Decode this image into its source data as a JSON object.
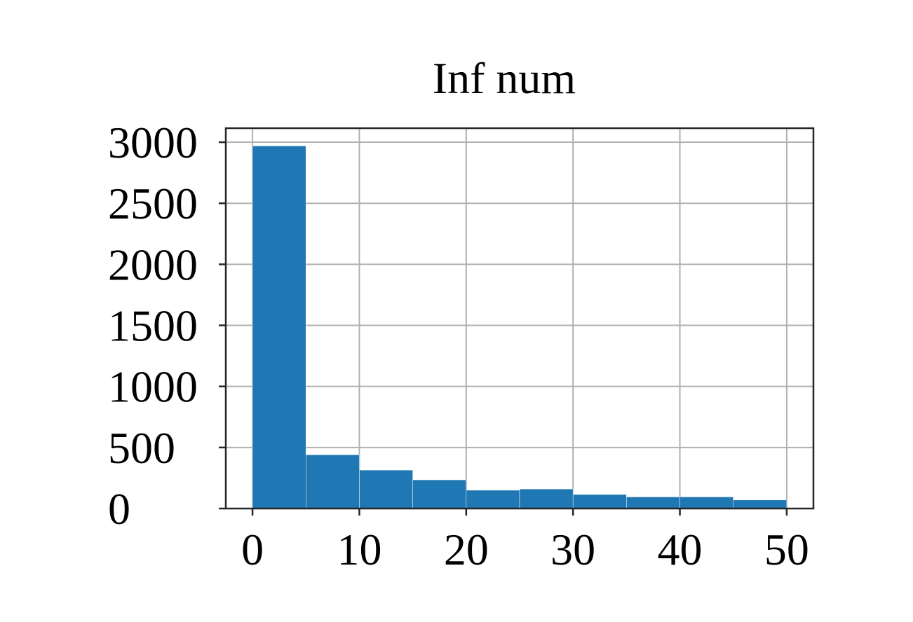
{
  "chart_data": {
    "type": "bar",
    "title": "Inf num",
    "xlabel": "",
    "ylabel": "",
    "bins": [
      {
        "start": 0,
        "end": 5,
        "count": 2970
      },
      {
        "start": 5,
        "end": 10,
        "count": 440
      },
      {
        "start": 10,
        "end": 15,
        "count": 315
      },
      {
        "start": 15,
        "end": 20,
        "count": 235
      },
      {
        "start": 20,
        "end": 25,
        "count": 150
      },
      {
        "start": 25,
        "end": 30,
        "count": 160
      },
      {
        "start": 30,
        "end": 35,
        "count": 115
      },
      {
        "start": 35,
        "end": 40,
        "count": 95
      },
      {
        "start": 40,
        "end": 45,
        "count": 95
      },
      {
        "start": 45,
        "end": 50,
        "count": 70
      }
    ],
    "xticks": [
      0,
      10,
      20,
      30,
      40,
      50
    ],
    "yticks": [
      0,
      500,
      1000,
      1500,
      2000,
      2500,
      3000
    ],
    "xlim": [
      -2.5,
      52.5
    ],
    "ylim": [
      0,
      3115
    ],
    "grid": true,
    "bar_color": "#1f77b4"
  }
}
